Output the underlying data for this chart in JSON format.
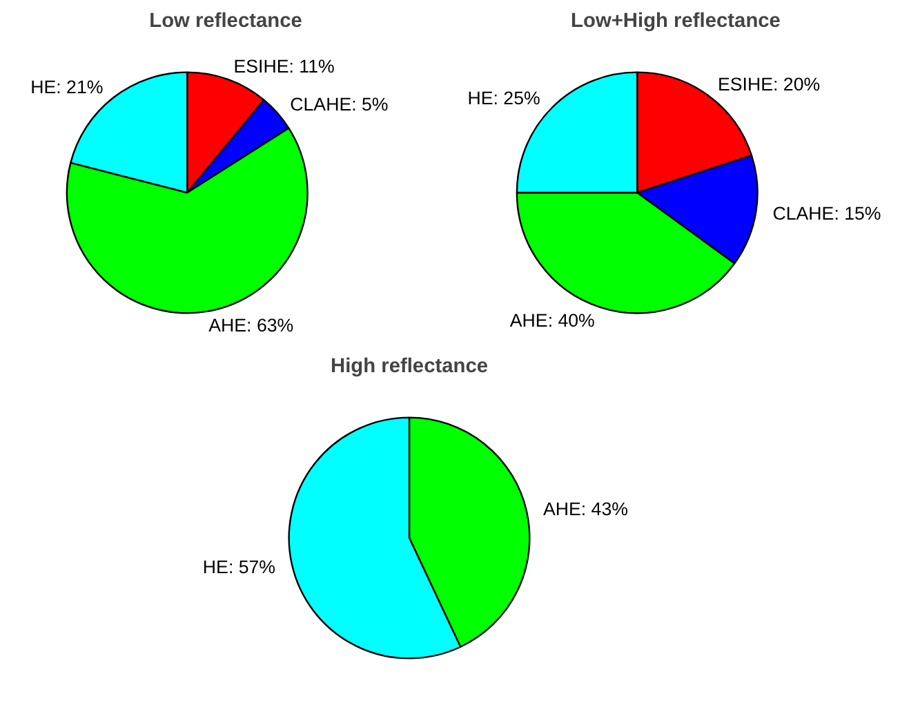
{
  "chart_data": [
    {
      "type": "pie",
      "title": "Low reflectance",
      "categories": [
        "ESIHE",
        "CLAHE",
        "AHE",
        "HE"
      ],
      "values": [
        11,
        5,
        63,
        21
      ],
      "colors": [
        "#ff0000",
        "#0000ff",
        "#00ff00",
        "#00ffff"
      ],
      "value_labels": [
        "11%",
        "5%",
        "63%",
        "21%"
      ]
    },
    {
      "type": "pie",
      "title": "Low+High reflectance",
      "categories": [
        "ESIHE",
        "CLAHE",
        "AHE",
        "HE"
      ],
      "values": [
        20,
        15,
        40,
        25
      ],
      "colors": [
        "#ff0000",
        "#0000ff",
        "#00ff00",
        "#00ffff"
      ],
      "value_labels": [
        "20%",
        "15%",
        "40%",
        "25%"
      ]
    },
    {
      "type": "pie",
      "title": "High reflectance",
      "categories": [
        "AHE",
        "HE"
      ],
      "values": [
        43,
        57
      ],
      "colors": [
        "#00ff00",
        "#00ffff"
      ],
      "value_labels": [
        "43%",
        "57%"
      ]
    }
  ]
}
